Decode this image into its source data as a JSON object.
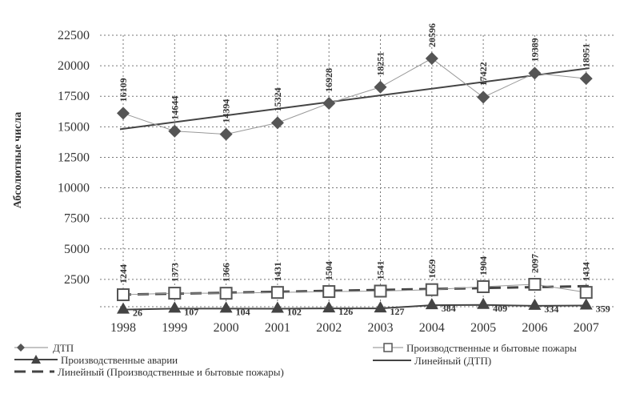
{
  "chart_data": {
    "type": "line",
    "ylabel": "Абсолютные числа",
    "xlabel": "",
    "ylim": [
      0,
      22500
    ],
    "yticks": [
      2500,
      5000,
      7500,
      10000,
      12500,
      15000,
      17500,
      20000,
      22500
    ],
    "grid": true,
    "x": [
      "1998",
      "1999",
      "2000",
      "2001",
      "2002",
      "2003",
      "2004",
      "2005",
      "2006",
      "2007"
    ],
    "series": [
      {
        "name": "ДТП",
        "marker": "diamond",
        "values": [
          16109,
          14644,
          14394,
          15324,
          16928,
          18251,
          20596,
          17422,
          19389,
          18951
        ],
        "labels": [
          "16109",
          "14644",
          "14394",
          "15324",
          "16928",
          "18251",
          "20596",
          "17422",
          "19389",
          "18951"
        ]
      },
      {
        "name": "Производственные и бытовые пожары",
        "marker": "square",
        "values": [
          1244,
          1373,
          1366,
          1431,
          1504,
          1541,
          1659,
          1904,
          2097,
          1434
        ],
        "labels": [
          "1244",
          "1373",
          "1366",
          "1431",
          "1504",
          "1541",
          "1659",
          "1904",
          "2097",
          "1434"
        ]
      },
      {
        "name": "Производственные аварии",
        "marker": "triangle",
        "values": [
          26,
          107,
          104,
          102,
          126,
          127,
          384,
          409,
          334,
          359
        ],
        "labels": [
          "26",
          "107",
          "104",
          "102",
          "126",
          "127",
          "384",
          "409",
          "334",
          "359"
        ]
      }
    ],
    "trendlines": [
      {
        "name": "Линейный (ДТП)",
        "from": 14800,
        "to": 19800,
        "style": "solid"
      },
      {
        "name": "Линейный (Производственные и бытовые пожары)",
        "from": 1250,
        "to": 1950,
        "style": "dashed"
      }
    ],
    "legend": {
      "placement": "bottom",
      "entries": [
        "ДТП",
        "Производственные аварии",
        "Линейный (Производственные и бытовые пожары)",
        "Производственные и бытовые пожары",
        "Линейный (ДТП)"
      ]
    },
    "colors": {
      "line": "#555555",
      "grid": "#777777",
      "marker_fill": "#555555",
      "square_fill": "#ffffff"
    }
  }
}
